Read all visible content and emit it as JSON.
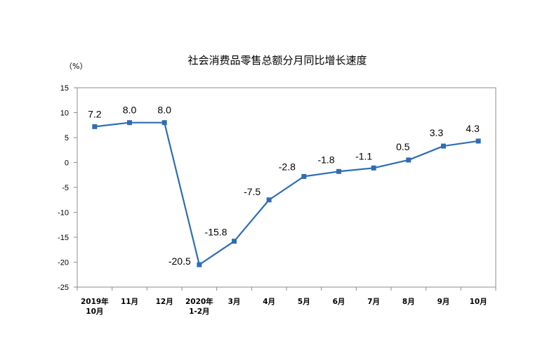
{
  "chart_data": {
    "type": "line",
    "title": "社会消费品零售总额分月同比增长速度",
    "ylabel": "（%）",
    "xlabel": "",
    "ylim": [
      -25,
      15
    ],
    "yticks": [
      15,
      10,
      5,
      0,
      -5,
      -10,
      -15,
      -20,
      -25
    ],
    "grid": false,
    "categories": [
      [
        "2019年",
        "10月"
      ],
      [
        "11月"
      ],
      [
        "12月"
      ],
      [
        "2020年",
        "1-2月"
      ],
      [
        "3月"
      ],
      [
        "4月"
      ],
      [
        "5月"
      ],
      [
        "6月"
      ],
      [
        "7月"
      ],
      [
        "8月"
      ],
      [
        "9月"
      ],
      [
        "10月"
      ]
    ],
    "series": [
      {
        "values": [
          7.2,
          8.0,
          8.0,
          -20.5,
          -15.8,
          -7.5,
          -2.8,
          -1.8,
          -1.1,
          0.5,
          3.3,
          4.3
        ],
        "data_labels": [
          "7.2",
          "8.0",
          "8.0",
          "-20.5",
          "-15.8",
          "-7.5",
          "-2.8",
          "-1.8",
          "-1.1",
          "0.5",
          "3.3",
          "4.3"
        ],
        "color": "#2E6DB4"
      }
    ]
  }
}
